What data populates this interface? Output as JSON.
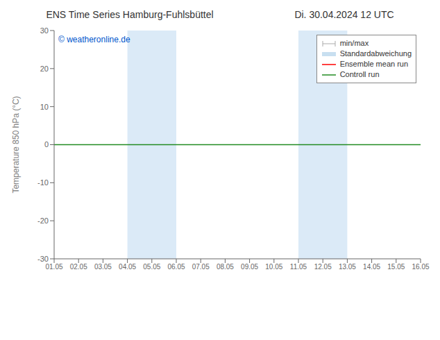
{
  "chart_data": {
    "type": "line",
    "title": "ENS Time Series Hamburg-Fuhlsbüttel",
    "subtitle": "Di. 30.04.2024 12 UTC",
    "y_label": "Temperature 850 hPa (°C)",
    "annotations": [
      {
        "text": "© weatheronline.de",
        "color": "#0055cc"
      }
    ],
    "xlim": [
      1.05,
      16.05
    ],
    "xticks": [
      {
        "value": 1.05,
        "label": "01.05"
      },
      {
        "value": 2.05,
        "label": "02.05"
      },
      {
        "value": 3.05,
        "label": "03.05"
      },
      {
        "value": 4.05,
        "label": "04.05"
      },
      {
        "value": 5.05,
        "label": "05.05"
      },
      {
        "value": 6.05,
        "label": "06.05"
      },
      {
        "value": 7.05,
        "label": "07.05"
      },
      {
        "value": 8.05,
        "label": "08.05"
      },
      {
        "value": 9.05,
        "label": "09.05"
      },
      {
        "value": 10.05,
        "label": "10.05"
      },
      {
        "value": 11.05,
        "label": "11.05"
      },
      {
        "value": 12.05,
        "label": "12.05"
      },
      {
        "value": 13.05,
        "label": "13.05"
      },
      {
        "value": 14.05,
        "label": "14.05"
      },
      {
        "value": 15.05,
        "label": "15.05"
      },
      {
        "value": 16.05,
        "label": "16.05"
      }
    ],
    "ylim": [
      -30,
      30
    ],
    "yticks": [
      -30,
      -20,
      -10,
      0,
      10,
      20,
      30
    ],
    "shaded_regions": [
      {
        "from": 4.05,
        "to": 6.05,
        "color": "#dbeaf7"
      },
      {
        "from": 11.05,
        "to": 13.05,
        "color": "#dbeaf7"
      }
    ],
    "zero_line": {
      "y": 0,
      "color": "#228B22"
    },
    "series": [
      {
        "name": "min/max",
        "type": "range",
        "color": "#aaaaaa",
        "values": []
      },
      {
        "name": "Standardabweichung",
        "type": "band",
        "color": "#c8dff0",
        "values": []
      },
      {
        "name": "Ensemble mean run",
        "type": "line",
        "color": "#ff0000",
        "values": []
      },
      {
        "name": "Controll run",
        "type": "line",
        "color": "#228B22",
        "values": []
      }
    ],
    "grid": false,
    "legend": "upper right"
  }
}
